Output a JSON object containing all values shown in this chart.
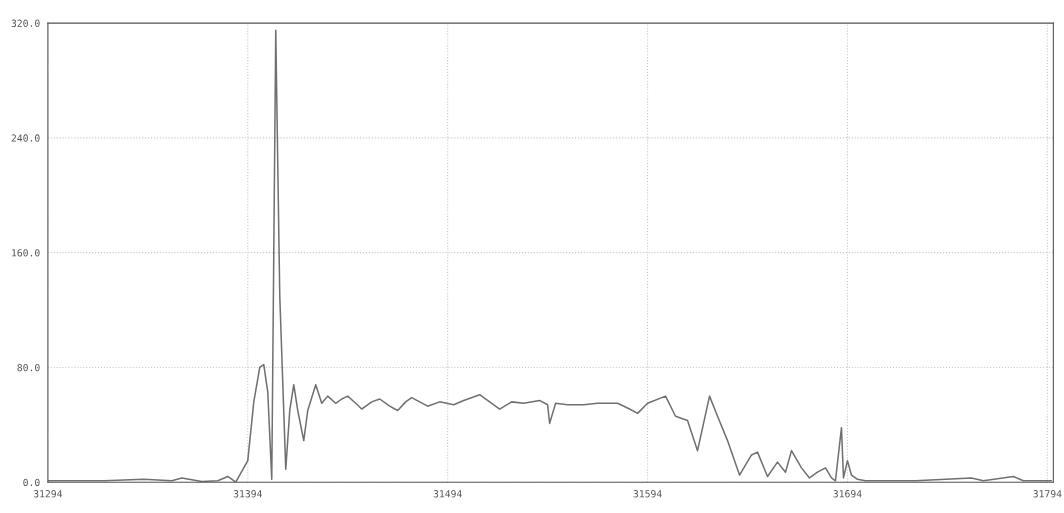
{
  "chart_data": {
    "type": "line",
    "xlim": [
      31294,
      31797
    ],
    "ylim": [
      0,
      320
    ],
    "xticks": [
      31294,
      31394,
      31494,
      31594,
      31694,
      31794
    ],
    "yticks": [
      {
        "value": 0,
        "label": "0.0"
      },
      {
        "value": 80,
        "label": "80.0"
      },
      {
        "value": 160,
        "label": "160.0"
      },
      {
        "value": 240,
        "label": "240.0"
      },
      {
        "value": 320,
        "label": "320.0"
      }
    ],
    "grid": true,
    "marker": "none",
    "line_style": "solid",
    "series": [
      {
        "color": "#707070",
        "x": [
          31294,
          31322,
          31342,
          31356,
          31361,
          31371,
          31379,
          31384,
          31388,
          31394,
          31397,
          31400,
          31402,
          31404,
          31406,
          31408,
          31410,
          31413,
          31415,
          31417,
          31419,
          31422,
          31424,
          31428,
          31431,
          31434,
          31438,
          31441,
          31444,
          31448,
          31451,
          31456,
          31460,
          31465,
          31469,
          31473,
          31476,
          31480,
          31484,
          31490,
          31497,
          31502,
          31510,
          31515,
          31520,
          31526,
          31532,
          31540,
          31544,
          31545,
          31548,
          31554,
          31562,
          31569,
          31579,
          31585,
          31589,
          31594,
          31603,
          31608,
          31614,
          31619,
          31625,
          31629,
          31634,
          31640,
          31646,
          31649,
          31654,
          31659,
          31663,
          31666,
          31671,
          31675,
          31679,
          31683,
          31686,
          31688,
          31691,
          31692,
          31694,
          31696,
          31699,
          31703,
          31728,
          31756,
          31762,
          31777,
          31782,
          31796
        ],
        "values": [
          1,
          1,
          2,
          1,
          3,
          0.5,
          1,
          4,
          0,
          15,
          56,
          80,
          82,
          63,
          2,
          315,
          130,
          9,
          50,
          68,
          50,
          29,
          50,
          68,
          55,
          60,
          55,
          58,
          60,
          55,
          51,
          56,
          58,
          53,
          50,
          56,
          59,
          56,
          53,
          56,
          54,
          57,
          61,
          56,
          51,
          56,
          55,
          57,
          54,
          41,
          55,
          54,
          54,
          55,
          55,
          51,
          48,
          55,
          60,
          46,
          43,
          22,
          60,
          46,
          29,
          5,
          19,
          21,
          4,
          14,
          7,
          22,
          10,
          3,
          7,
          10,
          3,
          1,
          38,
          3,
          15,
          5,
          2,
          1,
          1,
          3,
          1,
          4,
          1,
          1
        ]
      }
    ]
  }
}
